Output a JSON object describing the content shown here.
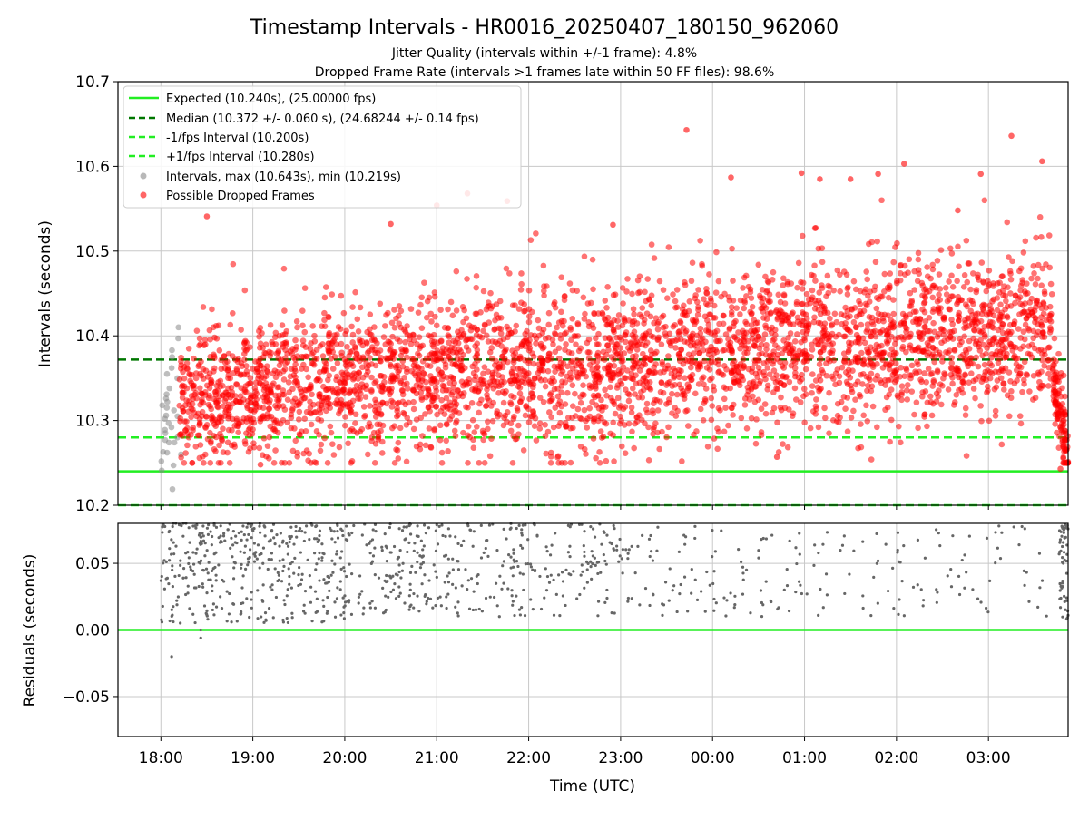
{
  "figure": {
    "title": "Timestamp Intervals - HR0016_20250407_180150_962060",
    "subtitle_1": "Jitter Quality (intervals within +/-1 frame): 4.8%",
    "subtitle_2": "Dropped Frame Rate (intervals >1 frames late within 50 FF files): 98.6%",
    "xlabel": "Time (UTC)"
  },
  "colors": {
    "expected": "#22ee22",
    "median": "#007700",
    "bounds": "#22ee22",
    "intervals": "#888888",
    "dropped": "#ff0000",
    "residuals": "#666666",
    "grid": "#c8c8c8"
  },
  "chart_data": [
    {
      "type": "scatter",
      "ylabel": "Intervals (seconds)",
      "ylim": [
        10.2,
        10.7
      ],
      "xlim": [
        "17:32",
        "03:52"
      ],
      "yticks": [
        "10.2",
        "10.3",
        "10.4",
        "10.5",
        "10.6",
        "10.7"
      ],
      "grid": true,
      "legend_position": "top-left",
      "hlines": [
        {
          "name": "Expected (10.240s), (25.00000 fps)",
          "value": 10.24,
          "style": "solid",
          "color": "#22ee22"
        },
        {
          "name": "Median (10.372 +/- 0.060 s), (24.68244 +/- 0.14 fps)",
          "value": 10.372,
          "style": "dashed",
          "color": "#007700"
        },
        {
          "name": "-1/fps Interval (10.200s)",
          "value": 10.2,
          "style": "dashed",
          "color": "#22ee22"
        },
        {
          "name": "+1/fps Interval (10.280s)",
          "value": 10.28,
          "style": "dashed",
          "color": "#22ee22"
        }
      ],
      "series": [
        {
          "name": "Intervals, max (10.643s), min (10.219s)",
          "color": "#888888",
          "points": [
            [
              "18:00",
              10.241
            ],
            [
              "18:01",
              10.252
            ],
            [
              "18:01",
              10.263
            ],
            [
              "18:01",
              10.277
            ],
            [
              "18:02",
              10.289
            ],
            [
              "18:02",
              10.302
            ],
            [
              "18:02",
              10.318
            ],
            [
              "18:02",
              10.326
            ],
            [
              "18:03",
              10.331
            ],
            [
              "18:03",
              10.322
            ],
            [
              "18:03",
              10.315
            ],
            [
              "18:04",
              10.306
            ],
            [
              "18:04",
              10.297
            ],
            [
              "18:04",
              10.285
            ],
            [
              "18:05",
              10.274
            ],
            [
              "18:05",
              10.262
            ],
            [
              "18:05",
              10.355
            ],
            [
              "18:06",
              10.362
            ],
            [
              "18:06",
              10.375
            ],
            [
              "18:06",
              10.383
            ],
            [
              "18:07",
              10.338
            ],
            [
              "18:07",
              10.292
            ],
            [
              "18:08",
              10.274
            ],
            [
              "18:08",
              10.219
            ],
            [
              "18:09",
              10.247
            ],
            [
              "18:09",
              10.312
            ],
            [
              "18:10",
              10.41
            ],
            [
              "18:10",
              10.397
            ],
            [
              "18:11",
              10.35
            ],
            [
              "18:11",
              10.28
            ],
            [
              "18:12",
              10.26
            ],
            [
              "18:12",
              10.305
            ]
          ]
        },
        {
          "name": "Possible Dropped Frames",
          "color": "#ff0000",
          "segments": [
            {
              "start": "18:12",
              "end": "19:00",
              "count": 330,
              "base_start": 10.325,
              "base_end": 10.335,
              "spread": 0.04
            },
            {
              "start": "19:00",
              "end": "20:00",
              "count": 400,
              "base_start": 10.335,
              "base_end": 10.345,
              "spread": 0.043
            },
            {
              "start": "20:00",
              "end": "21:00",
              "count": 400,
              "base_start": 10.345,
              "base_end": 10.355,
              "spread": 0.045
            },
            {
              "start": "21:00",
              "end": "22:00",
              "count": 400,
              "base_start": 10.355,
              "base_end": 10.36,
              "spread": 0.046
            },
            {
              "start": "22:00",
              "end": "23:00",
              "count": 400,
              "base_start": 10.36,
              "base_end": 10.37,
              "spread": 0.047
            },
            {
              "start": "23:00",
              "end": "00:00",
              "count": 400,
              "base_start": 10.37,
              "base_end": 10.38,
              "spread": 0.047
            },
            {
              "start": "00:00",
              "end": "01:00",
              "count": 400,
              "base_start": 10.38,
              "base_end": 10.39,
              "spread": 0.047
            },
            {
              "start": "01:00",
              "end": "02:00",
              "count": 400,
              "base_start": 10.39,
              "base_end": 10.395,
              "spread": 0.047
            },
            {
              "start": "02:00",
              "end": "03:00",
              "count": 400,
              "base_start": 10.395,
              "base_end": 10.405,
              "spread": 0.047
            },
            {
              "start": "03:00",
              "end": "03:42",
              "count": 280,
              "base_start": 10.405,
              "base_end": 10.41,
              "spread": 0.047
            },
            {
              "start": "03:42",
              "end": "03:52",
              "count": 120,
              "base_start": 10.36,
              "base_end": 10.26,
              "spread": 0.025
            }
          ],
          "outliers": [
            [
              "18:30",
              10.541
            ],
            [
              "19:05",
              10.248
            ],
            [
              "20:30",
              10.532
            ],
            [
              "21:00",
              10.554
            ],
            [
              "21:20",
              10.568
            ],
            [
              "21:46",
              10.559
            ],
            [
              "22:55",
              10.531
            ],
            [
              "23:43",
              10.643
            ],
            [
              "00:12",
              10.587
            ],
            [
              "00:42",
              10.257
            ],
            [
              "00:58",
              10.592
            ],
            [
              "01:10",
              10.585
            ],
            [
              "01:30",
              10.585
            ],
            [
              "01:48",
              10.591
            ],
            [
              "02:05",
              10.603
            ],
            [
              "02:40",
              10.548
            ],
            [
              "02:55",
              10.591
            ],
            [
              "03:15",
              10.636
            ],
            [
              "03:35",
              10.606
            ],
            [
              "03:47",
              10.243
            ]
          ]
        }
      ]
    },
    {
      "type": "scatter",
      "ylabel": "Residuals (seconds)",
      "ylim": [
        -0.08,
        0.08
      ],
      "xlim": [
        "17:32",
        "03:52"
      ],
      "yticks": [
        "−0.05",
        "0.00",
        "0.05"
      ],
      "xticks": [
        "18:00",
        "19:00",
        "20:00",
        "21:00",
        "22:00",
        "23:00",
        "00:00",
        "01:00",
        "02:00",
        "03:00"
      ],
      "grid": true,
      "hlines": [
        {
          "value": 0.0,
          "style": "solid",
          "color": "#22ee22"
        }
      ],
      "series": [
        {
          "name": "Residuals",
          "color": "#666666",
          "segments": [
            {
              "start": "18:00",
              "end": "19:00",
              "count": 210,
              "density": "high"
            },
            {
              "start": "19:00",
              "end": "20:00",
              "count": 190,
              "density": "high"
            },
            {
              "start": "20:00",
              "end": "21:00",
              "count": 150,
              "density": "medium"
            },
            {
              "start": "21:00",
              "end": "22:00",
              "count": 120,
              "density": "medium"
            },
            {
              "start": "22:00",
              "end": "23:00",
              "count": 100,
              "density": "medium"
            },
            {
              "start": "23:00",
              "end": "00:00",
              "count": 55,
              "density": "low"
            },
            {
              "start": "00:00",
              "end": "01:00",
              "count": 50,
              "density": "low"
            },
            {
              "start": "01:00",
              "end": "02:00",
              "count": 30,
              "density": "low"
            },
            {
              "start": "02:00",
              "end": "03:00",
              "count": 40,
              "density": "low"
            },
            {
              "start": "03:00",
              "end": "03:42",
              "count": 20,
              "density": "low"
            },
            {
              "start": "03:46",
              "end": "03:52",
              "count": 55,
              "density": "high"
            }
          ],
          "outliers": [
            [
              "18:07",
              -0.02
            ],
            [
              "18:26",
              -0.006
            ],
            [
              "18:26",
              0.0
            ]
          ]
        }
      ]
    }
  ]
}
